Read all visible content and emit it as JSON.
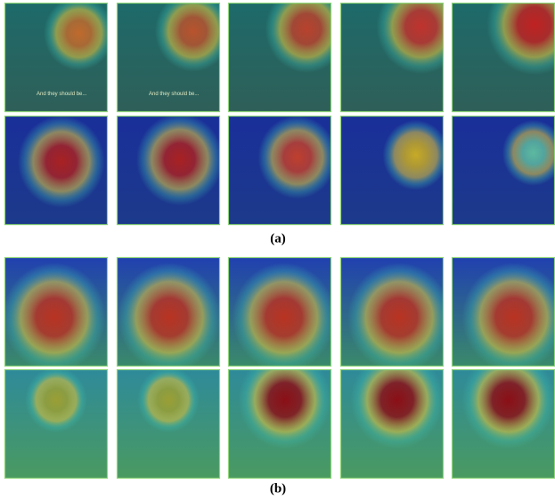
{
  "panels": [
    {
      "label": "(a)"
    },
    {
      "label": "(b)"
    }
  ],
  "image_caption": "And they should be..."
}
